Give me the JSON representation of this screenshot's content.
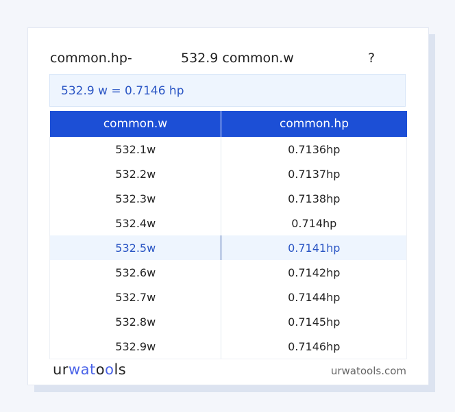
{
  "header": {
    "from_label": "common.hp-",
    "value_label": "532.9 common.w",
    "help": "?"
  },
  "result": "532.9 w = 0.7146 hp",
  "table": {
    "columns": [
      "common.w",
      "common.hp"
    ],
    "rows": [
      [
        "532.1w",
        "0.7136hp"
      ],
      [
        "532.2w",
        "0.7137hp"
      ],
      [
        "532.3w",
        "0.7138hp"
      ],
      [
        "532.4w",
        "0.714hp"
      ],
      [
        "532.5w",
        "0.7141hp"
      ],
      [
        "532.6w",
        "0.7142hp"
      ],
      [
        "532.7w",
        "0.7144hp"
      ],
      [
        "532.8w",
        "0.7145hp"
      ],
      [
        "532.9w",
        "0.7146hp"
      ]
    ],
    "highlighted_row": 4
  },
  "footer": {
    "logo": "urwatools",
    "site": "urwatools.com"
  },
  "colors": {
    "accent": "#1c4fd6",
    "highlight_bg": "#eef5fe",
    "highlight_text": "#2a55c4"
  }
}
